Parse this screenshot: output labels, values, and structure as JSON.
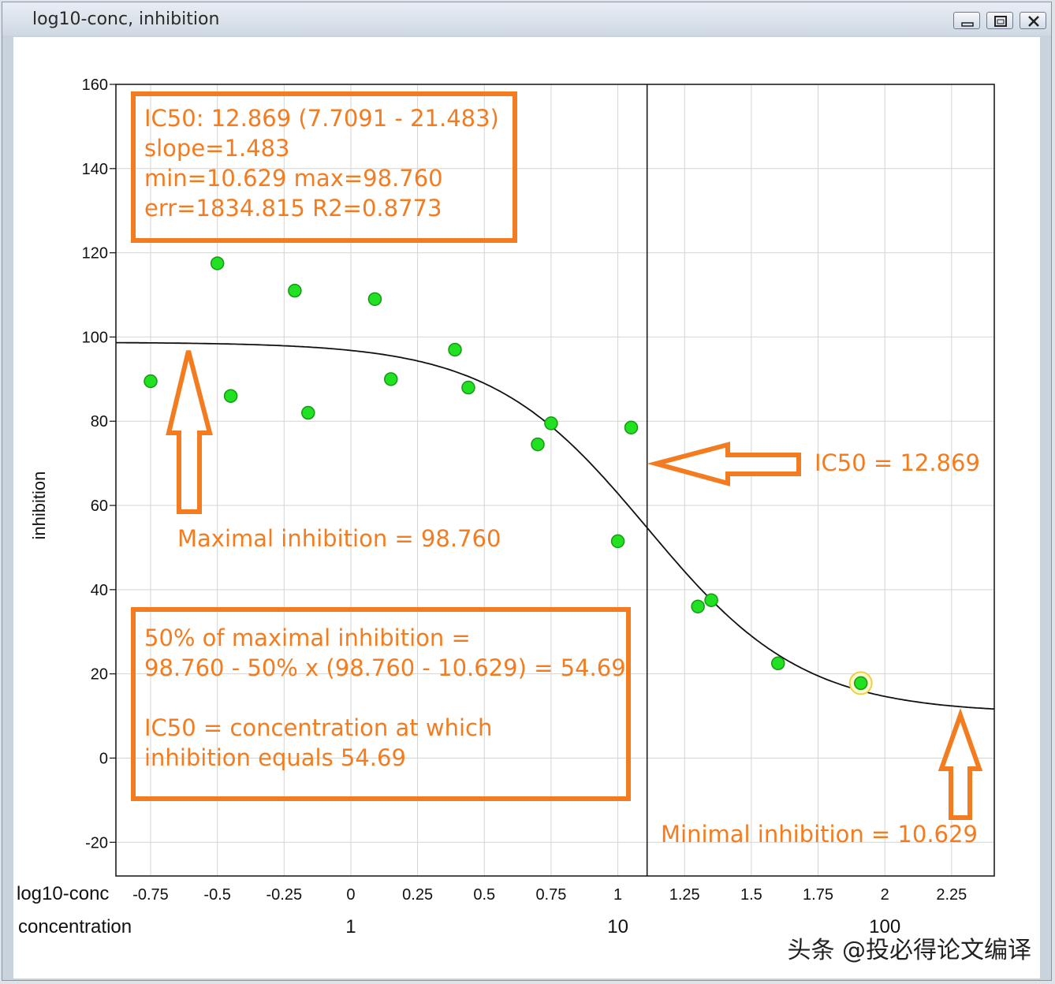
{
  "window": {
    "title": "log10-conc, inhibition"
  },
  "watermark": "头条 @投必得论文编译",
  "chart_data": {
    "type": "scatter",
    "xlabel": "log10-conc",
    "x2label": "concentration",
    "ylabel": "inhibition",
    "xlim": [
      -0.88,
      2.41
    ],
    "ylim": [
      -28,
      160
    ],
    "x_ticks": [
      -0.75,
      -0.5,
      -0.25,
      0,
      0.25,
      0.5,
      0.75,
      1,
      1.25,
      1.5,
      1.75,
      2,
      2.25
    ],
    "x_tick_labels": [
      "-0.75",
      "-0.5",
      "-0.25",
      "0",
      "0.25",
      "0.5",
      "0.75",
      "1",
      "1.25",
      "1.5",
      "1.75",
      "2",
      "2.25"
    ],
    "x2_ticks": [
      0,
      1,
      2
    ],
    "x2_tick_labels": [
      "1",
      "10",
      "100"
    ],
    "y_ticks": [
      -20,
      0,
      20,
      40,
      60,
      80,
      100,
      120,
      140,
      160
    ],
    "y_tick_labels": [
      "-20",
      "0",
      "20",
      "40",
      "60",
      "80",
      "100",
      "120",
      "140",
      "160"
    ],
    "grid": true,
    "points": {
      "x": [
        -0.75,
        -0.5,
        -0.45,
        -0.21,
        -0.16,
        0.09,
        0.15,
        0.39,
        0.44,
        0.7,
        0.75,
        1.0,
        1.05,
        1.3,
        1.35,
        1.6,
        1.91
      ],
      "y": [
        89.5,
        117.5,
        86,
        111,
        82,
        109,
        90,
        97,
        88,
        74.5,
        79.5,
        51.5,
        78.5,
        36,
        37.5,
        22.5,
        17.8
      ]
    },
    "highlighted_point": [
      1.91,
      17.8
    ],
    "fit": {
      "ic50": 12.869,
      "slope": 1.483,
      "min": 10.629,
      "max": 98.76
    },
    "ic50_line_x": 1.1096,
    "annotations": {
      "stats_lines": [
        "IC50: 12.869 (7.7091 - 21.483)",
        "slope=1.483",
        "min=10.629 max=98.760",
        "err=1834.815 R2=0.8773"
      ],
      "max_label": "Maximal inhibition = 98.760",
      "ic50_label": "IC50 = 12.869",
      "half_lines": [
        "50% of maximal inhibition =",
        "98.760 - 50% x (98.760 - 10.629) = 54.69",
        "",
        "IC50 = concentration at which",
        "inhibition equals 54.69"
      ],
      "min_label": "Minimal inhibition = 10.629"
    },
    "colors": {
      "point_fill": "#22e022",
      "point_stroke": "#139a13",
      "highlight": "#e8d24a",
      "curve": "#111111",
      "grid": "#d4d4d4",
      "annotation": "#f47c20"
    }
  }
}
